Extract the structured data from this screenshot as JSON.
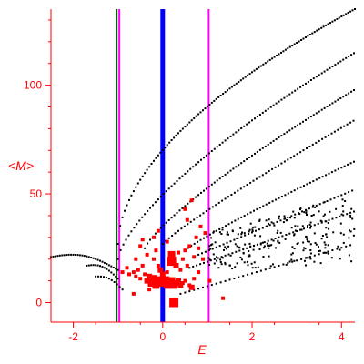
{
  "chart_data": {
    "type": "scatter",
    "title": "",
    "xlabel": "E",
    "ylabel": "<M>",
    "xlim": [
      -2.5,
      4.3
    ],
    "ylim": [
      -9,
      135
    ],
    "xticks": [
      "-2",
      "0",
      "2",
      "4"
    ],
    "xtick_values": [
      -2,
      0,
      2,
      4
    ],
    "yticks": [
      "0",
      "50",
      "100"
    ],
    "ytick_values": [
      0,
      50,
      100
    ],
    "grid": false,
    "legend": "none",
    "colors": {
      "axes": "#ff0000",
      "black_points": "#000000",
      "red_points": "#ff0000",
      "blue_line": "#0000ff",
      "magenta_line": "#ff00ff",
      "green_line": "#006400"
    },
    "vertical_lines": [
      {
        "x": -1.03,
        "color": "#006400",
        "width": 2
      },
      {
        "x": -0.97,
        "color": "#ff00ff",
        "width": 2
      },
      {
        "x": 0.0,
        "color": "#0000ff",
        "width": 5
      },
      {
        "x": 1.03,
        "color": "#ff00ff",
        "width": 2
      }
    ],
    "black_series": [
      {
        "kind": "arc",
        "x0": -2.5,
        "x1": -1.0,
        "base": 21,
        "peak": 24.5,
        "step": 0.05
      },
      {
        "kind": "arc",
        "x0": -1.7,
        "x1": -1.0,
        "base": 17,
        "peak": 19.5,
        "step": 0.05
      },
      {
        "kind": "arc",
        "x0": -1.5,
        "x1": -0.9,
        "base": 12,
        "peak": 14,
        "step": 0.06
      },
      {
        "kind": "line",
        "x0": -1.0,
        "x1": 4.3,
        "y0": 27,
        "y1": 135,
        "curve": 0.55,
        "step": 0.05
      },
      {
        "kind": "line",
        "x0": -1.0,
        "x1": 4.3,
        "y0": 20,
        "y1": 115,
        "curve": 0.7,
        "step": 0.06
      },
      {
        "kind": "line",
        "x0": -0.4,
        "x1": 4.3,
        "y0": 25,
        "y1": 98,
        "curve": 0.8,
        "step": 0.06
      },
      {
        "kind": "line",
        "x0": 0.0,
        "x1": 4.3,
        "y0": 27,
        "y1": 84,
        "curve": 0.9,
        "step": 0.07
      },
      {
        "kind": "line",
        "x0": 0.5,
        "x1": 4.3,
        "y0": 24,
        "y1": 65,
        "curve": 0.9,
        "step": 0.07
      },
      {
        "kind": "line",
        "x0": 0.8,
        "x1": 4.3,
        "y0": 22,
        "y1": 52,
        "curve": 1.0,
        "step": 0.08
      },
      {
        "kind": "line",
        "x0": 0.6,
        "x1": 4.3,
        "y0": 16,
        "y1": 42,
        "curve": 1.0,
        "step": 0.08
      },
      {
        "kind": "line",
        "x0": 0.4,
        "x1": 4.3,
        "y0": 4,
        "y1": 27,
        "curve": 1.0,
        "step": 0.1
      },
      {
        "kind": "cloud",
        "x0": 1.0,
        "x1": 4.3,
        "ylo0": 15,
        "yhi0": 32,
        "ylo1": 18,
        "yhi1": 50,
        "n": 230
      }
    ],
    "red_points": [
      {
        "x": -0.75,
        "y": 13,
        "s": 2
      },
      {
        "x": -0.65,
        "y": 14,
        "s": 2
      },
      {
        "x": -0.6,
        "y": 12,
        "s": 2
      },
      {
        "x": -0.55,
        "y": 15,
        "s": 2
      },
      {
        "x": -0.5,
        "y": 11,
        "s": 2
      },
      {
        "x": -0.45,
        "y": 17,
        "s": 2
      },
      {
        "x": -0.4,
        "y": 13,
        "s": 2
      },
      {
        "x": -0.35,
        "y": 10,
        "s": 3
      },
      {
        "x": -0.3,
        "y": 12,
        "s": 3
      },
      {
        "x": -0.25,
        "y": 9,
        "s": 4
      },
      {
        "x": -0.2,
        "y": 11,
        "s": 4
      },
      {
        "x": -0.15,
        "y": 8,
        "s": 4
      },
      {
        "x": -0.1,
        "y": 10,
        "s": 5
      },
      {
        "x": -0.05,
        "y": 9,
        "s": 4
      },
      {
        "x": 0.05,
        "y": 10,
        "s": 5
      },
      {
        "x": 0.1,
        "y": 8,
        "s": 4
      },
      {
        "x": 0.15,
        "y": 9,
        "s": 5
      },
      {
        "x": 0.2,
        "y": 10,
        "s": 4
      },
      {
        "x": 0.25,
        "y": 8,
        "s": 4
      },
      {
        "x": 0.3,
        "y": 9,
        "s": 3
      },
      {
        "x": 0.35,
        "y": 10,
        "s": 3
      },
      {
        "x": 0.4,
        "y": 8,
        "s": 3
      },
      {
        "x": 0.45,
        "y": 9,
        "s": 2
      },
      {
        "x": 0.5,
        "y": 10,
        "s": 2
      },
      {
        "x": 0.6,
        "y": 8,
        "s": 2
      },
      {
        "x": 0.65,
        "y": 7,
        "s": 3
      },
      {
        "x": 0.7,
        "y": 11,
        "s": 2
      },
      {
        "x": 0.8,
        "y": 14,
        "s": 2
      },
      {
        "x": 0.9,
        "y": 20,
        "s": 2
      },
      {
        "x": 1.05,
        "y": 10,
        "s": 2
      },
      {
        "x": -0.5,
        "y": 26,
        "s": 2
      },
      {
        "x": -0.45,
        "y": 29,
        "s": 2
      },
      {
        "x": -0.35,
        "y": 22,
        "s": 2
      },
      {
        "x": -0.2,
        "y": 20,
        "s": 2
      },
      {
        "x": -0.15,
        "y": 24,
        "s": 2
      },
      {
        "x": -0.1,
        "y": 17,
        "s": 2
      },
      {
        "x": 0.2,
        "y": 22,
        "s": 4
      },
      {
        "x": 0.2,
        "y": 19,
        "s": 5
      },
      {
        "x": 0.3,
        "y": 17,
        "s": 3
      },
      {
        "x": 0.35,
        "y": 23,
        "s": 2
      },
      {
        "x": 0.4,
        "y": 15,
        "s": 2
      },
      {
        "x": 0.45,
        "y": 20,
        "s": 2
      },
      {
        "x": 0.5,
        "y": 24,
        "s": 2
      },
      {
        "x": 0.55,
        "y": 17,
        "s": 2
      },
      {
        "x": 0.6,
        "y": 26,
        "s": 2
      },
      {
        "x": 0.7,
        "y": 21,
        "s": 2
      },
      {
        "x": 0.75,
        "y": 30,
        "s": 2
      },
      {
        "x": 0.8,
        "y": 25,
        "s": 2
      },
      {
        "x": 0.85,
        "y": 35,
        "s": 2
      },
      {
        "x": 0.95,
        "y": 32,
        "s": 2
      },
      {
        "x": 0.55,
        "y": 38,
        "s": 2
      },
      {
        "x": 0.65,
        "y": 47,
        "s": 2
      },
      {
        "x": 0.5,
        "y": 43,
        "s": 2
      },
      {
        "x": -0.2,
        "y": 30,
        "s": 2
      },
      {
        "x": -0.1,
        "y": 33,
        "s": 2
      },
      {
        "x": 0.1,
        "y": 28,
        "s": 2
      },
      {
        "x": 0.25,
        "y": 0,
        "s": 5
      },
      {
        "x": -0.65,
        "y": 4,
        "s": 2
      },
      {
        "x": 1.35,
        "y": 2,
        "s": 2
      },
      {
        "x": -0.3,
        "y": 6,
        "s": 2
      },
      {
        "x": 0.0,
        "y": 13,
        "s": 3
      },
      {
        "x": -0.05,
        "y": 15,
        "s": 3
      },
      {
        "x": 0.1,
        "y": 14,
        "s": 2
      },
      {
        "x": -0.6,
        "y": 20,
        "s": 2
      },
      {
        "x": -0.8,
        "y": 16,
        "s": 2
      },
      {
        "x": -0.9,
        "y": 14,
        "s": 2
      }
    ]
  }
}
